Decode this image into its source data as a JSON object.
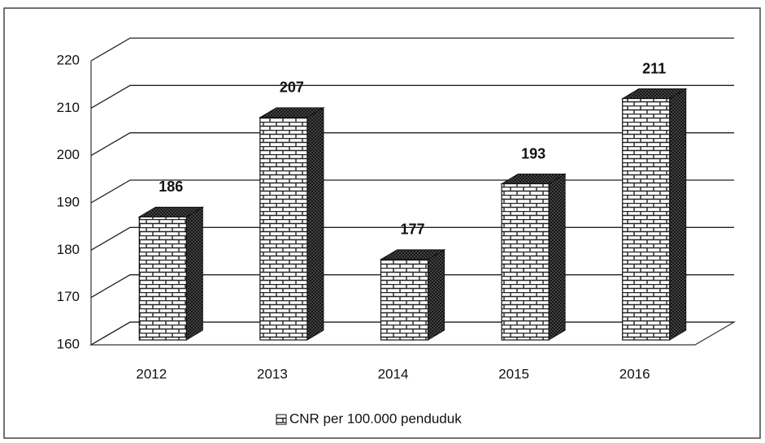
{
  "chart_data": {
    "type": "bar3d",
    "categories": [
      "2012",
      "2013",
      "2014",
      "2015",
      "2016"
    ],
    "series": [
      {
        "name": "CNR per 100.000 penduduk",
        "color": "#ffffff",
        "values": [
          186,
          207,
          177,
          193,
          211
        ]
      }
    ],
    "ylim": [
      160,
      220
    ],
    "yticks": [
      160,
      170,
      180,
      190,
      200,
      210,
      220
    ],
    "grid": true,
    "legend": "bottom"
  }
}
